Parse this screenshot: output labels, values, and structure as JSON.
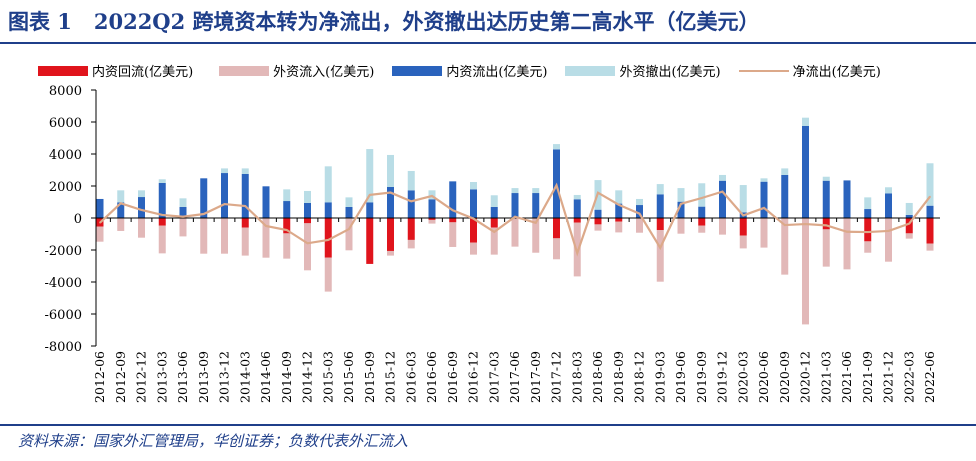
{
  "title": "图表 1   2022Q2 跨境资本转为净流出，外资撤出达历史第二高水平（亿美元）",
  "source": "资料来源：国家外汇管理局，华创证券；负数代表外汇流入",
  "colors": {
    "domestic_return": "#e0141c",
    "foreign_inflow": "#e2b8b8",
    "domestic_outflow": "#2a63bd",
    "foreign_withdraw": "#b9dde6",
    "net": "#dca98a",
    "title": "#1f3f8a"
  },
  "chart_data": {
    "type": "bar",
    "stacked": true,
    "ylim": [
      -8000,
      8000
    ],
    "yticks": [
      8000,
      6000,
      4000,
      2000,
      0,
      -2000,
      -4000,
      -6000,
      -8000
    ],
    "legend_position": "top",
    "categories": [
      "2012-06",
      "2012-09",
      "2012-12",
      "2013-03",
      "2013-06",
      "2013-09",
      "2013-12",
      "2014-03",
      "2014-06",
      "2014-09",
      "2014-12",
      "2015-03",
      "2015-06",
      "2015-09",
      "2015-12",
      "2016-03",
      "2016-06",
      "2016-09",
      "2016-12",
      "2017-03",
      "2017-06",
      "2017-09",
      "2017-12",
      "2018-03",
      "2018-06",
      "2018-09",
      "2018-12",
      "2019-03",
      "2019-06",
      "2019-09",
      "2019-12",
      "2020-03",
      "2020-06",
      "2020-09",
      "2020-12",
      "2021-03",
      "2021-06",
      "2021-09",
      "2021-12",
      "2022-03",
      "2022-06"
    ],
    "series": [
      {
        "name": "内资回流(亿美元)",
        "type": "bar",
        "values": [
          -540,
          0,
          0,
          -480,
          0,
          0,
          0,
          -600,
          0,
          -960,
          -330,
          -2480,
          0,
          -2870,
          -2060,
          -1370,
          -120,
          -270,
          -1540,
          -600,
          0,
          0,
          -1270,
          -290,
          -400,
          -230,
          0,
          -750,
          0,
          -480,
          0,
          -1100,
          0,
          0,
          0,
          -710,
          0,
          -1460,
          0,
          -960,
          -1600
        ]
      },
      {
        "name": "外资流入(亿美元)",
        "type": "bar",
        "values": [
          -940,
          -810,
          -1230,
          -1730,
          -1150,
          -2230,
          -2230,
          -1750,
          -2480,
          -1580,
          -2940,
          -2120,
          -2020,
          0,
          -290,
          -530,
          -230,
          -1540,
          -750,
          -1690,
          -1790,
          -2170,
          -1310,
          -3360,
          -390,
          -670,
          -920,
          -3230,
          -980,
          -440,
          -1040,
          -800,
          -1850,
          -3540,
          -6650,
          -2330,
          -3210,
          -710,
          -2730,
          -330,
          -440
        ]
      },
      {
        "name": "内资流出(亿美元)",
        "type": "bar",
        "values": [
          1190,
          980,
          1310,
          2190,
          690,
          2480,
          2810,
          2750,
          1980,
          1060,
          940,
          980,
          690,
          980,
          1940,
          1730,
          1170,
          2290,
          1790,
          690,
          1560,
          1560,
          4290,
          1170,
          520,
          900,
          810,
          1480,
          1020,
          710,
          2330,
          350,
          2270,
          2690,
          5750,
          2330,
          2350,
          560,
          1540,
          190,
          770
        ]
      },
      {
        "name": "外资撤出(亿美元)",
        "type": "bar",
        "values": [
          0,
          750,
          420,
          230,
          540,
          0,
          290,
          350,
          0,
          730,
          750,
          2250,
          600,
          3330,
          2000,
          1210,
          560,
          0,
          460,
          730,
          310,
          310,
          330,
          270,
          1850,
          830,
          380,
          640,
          850,
          1460,
          360,
          1710,
          210,
          410,
          520,
          250,
          0,
          730,
          380,
          750,
          2650
        ]
      },
      {
        "name": "净流出(亿美元)",
        "type": "line",
        "values": [
          -290,
          920,
          500,
          190,
          80,
          250,
          870,
          750,
          -500,
          -750,
          -1580,
          -1370,
          -690,
          1440,
          1590,
          1040,
          1380,
          480,
          -40,
          -870,
          80,
          -300,
          2040,
          -2190,
          1580,
          830,
          270,
          -1860,
          890,
          1250,
          1650,
          160,
          630,
          -440,
          -380,
          -460,
          -860,
          -880,
          -810,
          -350,
          1340
        ]
      }
    ]
  }
}
